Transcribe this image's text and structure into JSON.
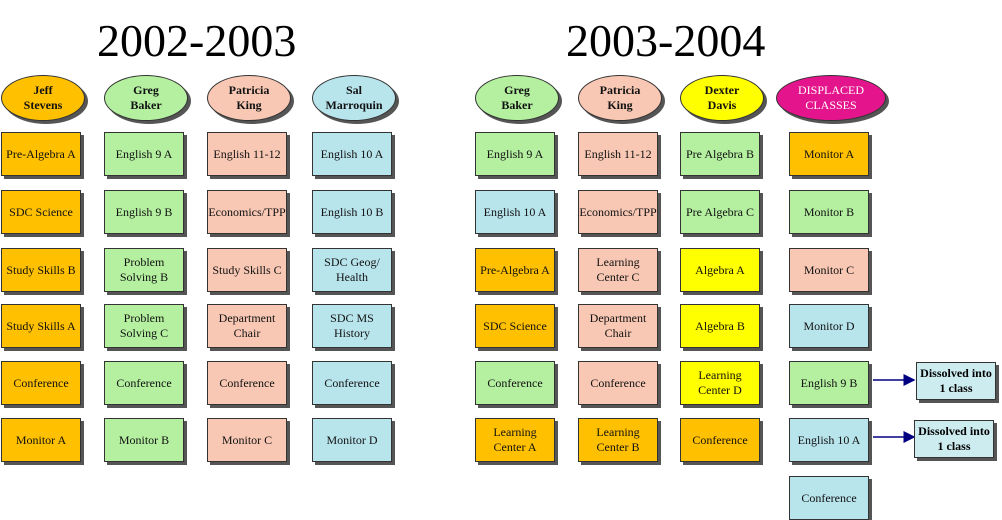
{
  "colors": {
    "orange": "#ffc000",
    "green": "#b4f0a0",
    "pink": "#f8c8b4",
    "blue": "#b8e4ec",
    "yellow": "#ffff00",
    "magenta": "#e4148c",
    "note": "#ccecf0"
  },
  "left": {
    "title": "2002-2003",
    "columns": [
      {
        "teacher": "Jeff\nStevens",
        "color": "orange",
        "items": [
          {
            "label": "Pre-Algebra A",
            "color": "orange"
          },
          {
            "label": "SDC Science",
            "color": "orange"
          },
          {
            "label": "Study Skills B",
            "color": "orange"
          },
          {
            "label": "Study Skills A",
            "color": "orange"
          },
          {
            "label": "Conference",
            "color": "orange"
          },
          {
            "label": "Monitor A",
            "color": "orange"
          }
        ]
      },
      {
        "teacher": "Greg\nBaker",
        "color": "green",
        "items": [
          {
            "label": "English 9 A",
            "color": "green"
          },
          {
            "label": "English 9 B",
            "color": "green"
          },
          {
            "label": "Problem\nSolving B",
            "color": "green"
          },
          {
            "label": "Problem\nSolving C",
            "color": "green"
          },
          {
            "label": "Conference",
            "color": "green"
          },
          {
            "label": "Monitor B",
            "color": "green"
          }
        ]
      },
      {
        "teacher": "Patricia\nKing",
        "color": "pink",
        "items": [
          {
            "label": "English 11-12",
            "color": "pink"
          },
          {
            "label": "Economics/TPP",
            "color": "pink"
          },
          {
            "label": "Study Skills C",
            "color": "pink"
          },
          {
            "label": "Department\nChair",
            "color": "pink"
          },
          {
            "label": "Conference",
            "color": "pink"
          },
          {
            "label": "Monitor C",
            "color": "pink"
          }
        ]
      },
      {
        "teacher": "Sal\nMarroquin",
        "color": "blue",
        "items": [
          {
            "label": "English 10 A",
            "color": "blue"
          },
          {
            "label": "English 10 B",
            "color": "blue"
          },
          {
            "label": "SDC Geog/\nHealth",
            "color": "blue"
          },
          {
            "label": "SDC MS\nHistory",
            "color": "blue"
          },
          {
            "label": "Conference",
            "color": "blue"
          },
          {
            "label": "Monitor D",
            "color": "blue"
          }
        ]
      }
    ]
  },
  "right": {
    "title": "2003-2004",
    "columns": [
      {
        "teacher": "Greg\nBaker",
        "color": "green",
        "items": [
          {
            "label": "English 9 A",
            "color": "green"
          },
          {
            "label": "English 10 A",
            "color": "blue"
          },
          {
            "label": "Pre-Algebra A",
            "color": "orange"
          },
          {
            "label": "SDC Science",
            "color": "orange"
          },
          {
            "label": "Conference",
            "color": "green"
          },
          {
            "label": "Learning\nCenter A",
            "color": "orange"
          }
        ]
      },
      {
        "teacher": "Patricia\nKing",
        "color": "pink",
        "items": [
          {
            "label": "English 11-12",
            "color": "pink"
          },
          {
            "label": "Economics/TPP",
            "color": "pink"
          },
          {
            "label": "Learning\nCenter C",
            "color": "pink"
          },
          {
            "label": "Department\nChair",
            "color": "pink"
          },
          {
            "label": "Conference",
            "color": "pink"
          },
          {
            "label": "Learning\nCenter B",
            "color": "orange"
          }
        ]
      },
      {
        "teacher": "Dexter\nDavis",
        "color": "yellow",
        "items": [
          {
            "label": "Pre Algebra B",
            "color": "green"
          },
          {
            "label": "Pre Algebra C",
            "color": "green"
          },
          {
            "label": "Algebra A",
            "color": "yellow"
          },
          {
            "label": "Algebra B",
            "color": "yellow"
          },
          {
            "label": "Learning\nCenter D",
            "color": "yellow"
          },
          {
            "label": "Conference",
            "color": "orange"
          }
        ]
      },
      {
        "teacher": "DISPLACED\nCLASSES",
        "color": "magenta",
        "items": [
          {
            "label": "Monitor A",
            "color": "orange"
          },
          {
            "label": "Monitor B",
            "color": "green"
          },
          {
            "label": "Monitor C",
            "color": "pink"
          },
          {
            "label": "Monitor D",
            "color": "blue"
          },
          {
            "label": "English 9 B",
            "color": "green"
          },
          {
            "label": "English 10 A",
            "color": "blue"
          },
          {
            "label": "Conference",
            "color": "blue"
          }
        ]
      }
    ]
  },
  "notes": [
    {
      "label": "Dissolved into\n1 class"
    },
    {
      "label": "Dissolved into\n1 class"
    }
  ]
}
